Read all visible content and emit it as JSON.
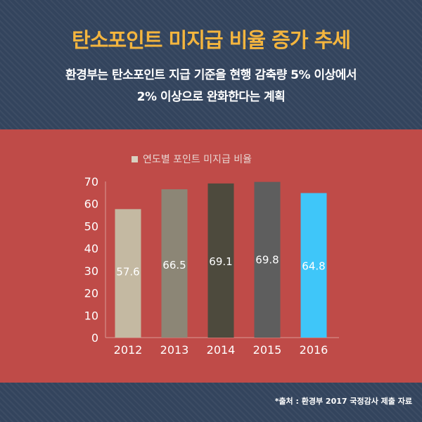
{
  "header": {
    "title": "탄소포인트 미지급 비율 증가 추세",
    "subtitle_line1": "환경부는 탄소포인트 지급 기준을 현행 감축량 5% 이상에서",
    "subtitle_line2": "2% 이상으로 완화한다는 계획"
  },
  "footer": {
    "source": "*출처 : 환경부 2017 국정감사 제출 자료"
  },
  "colors": {
    "header_bg": "#33445d",
    "title": "#f4b53e",
    "panel_bg": "#bf4b48"
  },
  "chart_data": {
    "type": "bar",
    "title": "",
    "xlabel": "",
    "ylabel": "",
    "legend": [
      "연도별 포인트 미지급 비율"
    ],
    "legend_position": "top-left",
    "categories": [
      "2012",
      "2013",
      "2014",
      "2015",
      "2016"
    ],
    "values": [
      57.6,
      66.5,
      69.1,
      69.8,
      64.8
    ],
    "value_labels": [
      "57.6",
      "66.5",
      "69.1",
      "69.8",
      "64.8"
    ],
    "bar_colors": [
      "#c4b9a2",
      "#8c8676",
      "#4d4a3d",
      "#5e5e5e",
      "#3fc6f9"
    ],
    "ylim": [
      0,
      70
    ],
    "yticks": [
      "0",
      "10",
      "20",
      "30",
      "40",
      "50",
      "60",
      "70"
    ],
    "grid": false
  }
}
